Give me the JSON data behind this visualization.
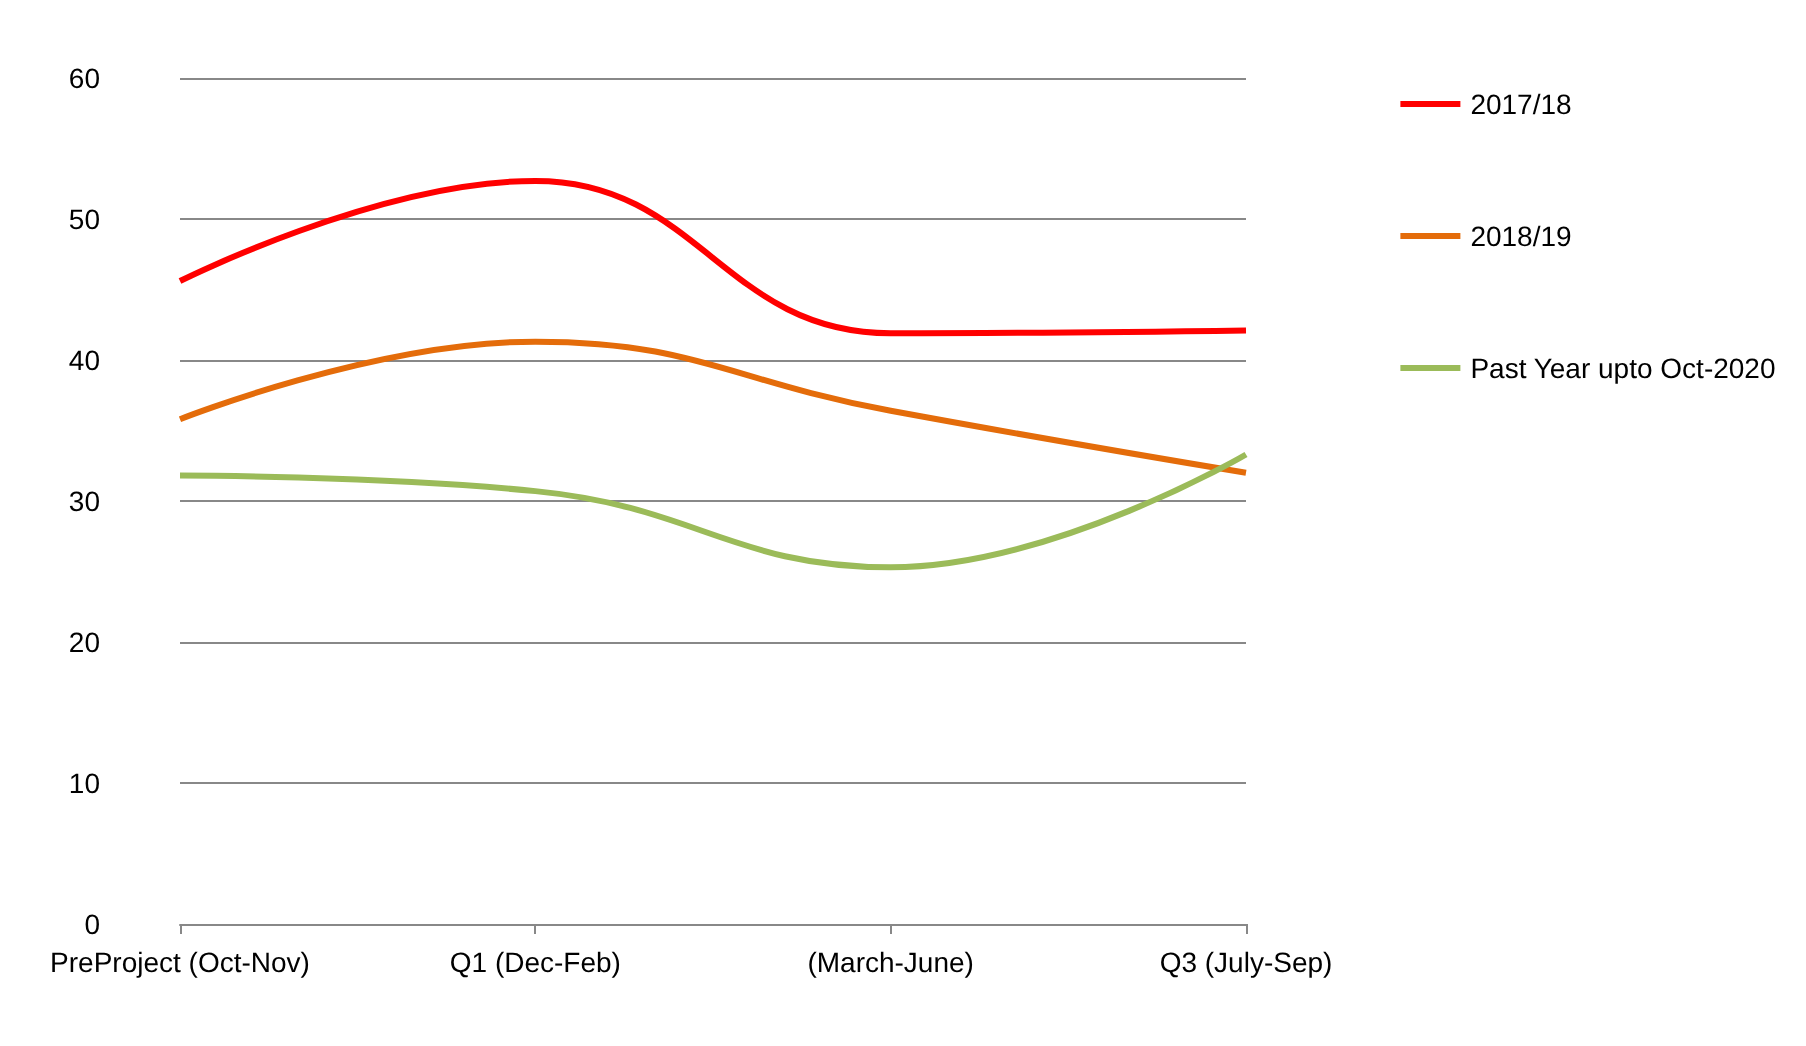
{
  "chart_data": {
    "type": "line",
    "categories": [
      "PreProject (Oct-Nov)",
      "Q1 (Dec-Feb)",
      "(March-June)",
      "Q3 (July-Sep)"
    ],
    "series": [
      {
        "name": "2017/18",
        "color": "#ff0000",
        "values": [
          45.6,
          52.7,
          41.9,
          42.1
        ]
      },
      {
        "name": "2018/19",
        "color": "#e46c0a",
        "values": [
          35.8,
          41.3,
          36.4,
          32.0
        ]
      },
      {
        "name": "Past Year upto Oct-2020",
        "color": "#9bbb59",
        "values": [
          31.8,
          30.7,
          25.3,
          33.3
        ]
      }
    ],
    "ylim": [
      0,
      60
    ],
    "yticks": [
      0,
      10,
      20,
      30,
      40,
      50,
      60
    ],
    "grid": "y",
    "legend": "right",
    "marker": "none",
    "line_style": "solid"
  }
}
